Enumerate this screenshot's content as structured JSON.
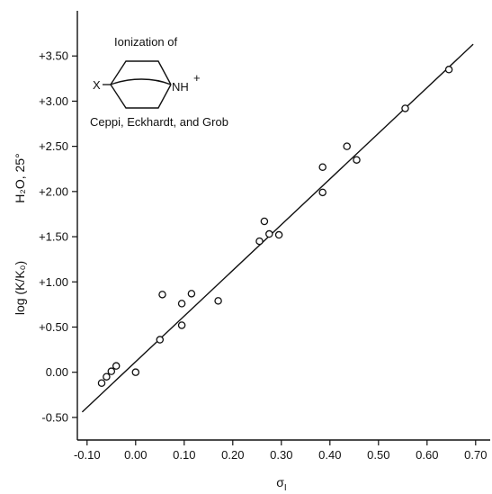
{
  "chart_data": {
    "type": "scatter",
    "title": "",
    "xlabel": "σ",
    "xlabel_subscript": "I",
    "ylabel": "log (K/K₀)",
    "ylabel_condition": "H₂O, 25°",
    "xlim": [
      -0.12,
      0.73
    ],
    "ylim": [
      -0.75,
      4.0
    ],
    "grid": false,
    "legend": "none",
    "x_ticks": [
      -0.1,
      0.0,
      0.1,
      0.2,
      0.3,
      0.4,
      0.5,
      0.6,
      0.7
    ],
    "x_tick_labels": [
      "-0.10",
      "0.00",
      "0.10",
      "0.20",
      "0.30",
      "0.40",
      "0.50",
      "0.60",
      "0.70"
    ],
    "y_ticks": [
      -0.5,
      0.0,
      0.5,
      1.0,
      1.5,
      2.0,
      2.5,
      3.0,
      3.5
    ],
    "y_tick_labels": [
      "-0.50",
      "0.00",
      "+0.50",
      "+1.00",
      "+1.50",
      "+2.00",
      "+2.50",
      "+3.00",
      "+3.50"
    ],
    "annotation": {
      "line1": "Ionization of",
      "substituent": "X",
      "cation_label": "NH",
      "charge": "+",
      "line3": "Ceppi, Eckhardt, and Grob"
    },
    "series": [
      {
        "marker": "open-circle",
        "x": [
          -0.07,
          -0.06,
          -0.05,
          -0.04,
          0.0,
          0.05,
          0.055,
          0.095,
          0.095,
          0.115,
          0.17,
          0.255,
          0.265,
          0.275,
          0.295,
          0.385,
          0.385,
          0.435,
          0.455,
          0.555,
          0.645
        ],
        "y": [
          -0.12,
          -0.05,
          0.01,
          0.07,
          0.0,
          0.36,
          0.86,
          0.76,
          0.52,
          0.87,
          0.79,
          1.45,
          1.67,
          1.53,
          1.52,
          2.27,
          1.99,
          2.5,
          2.35,
          2.92,
          3.35
        ]
      }
    ],
    "fit_line": {
      "x": [
        -0.11,
        0.695
      ],
      "y": [
        -0.44,
        3.63
      ]
    }
  }
}
